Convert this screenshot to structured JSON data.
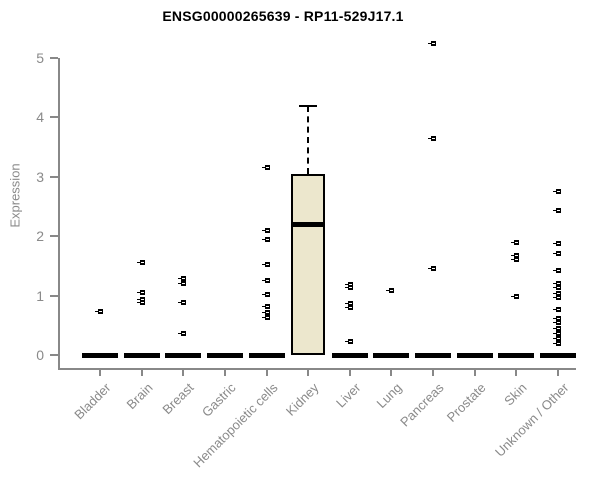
{
  "chart_data": {
    "type": "boxplot",
    "title": "ENSG00000265639 - RP11-529J17.1",
    "ylabel": "Expression",
    "xlabel": "",
    "ylim": [
      0,
      5
    ],
    "yticks": [
      0,
      1,
      2,
      3,
      4,
      5
    ],
    "grid": "off",
    "legend": "none",
    "categories": [
      "Bladder",
      "Brain",
      "Breast",
      "Gastric",
      "Hematopoietic cells",
      "Kidney",
      "Liver",
      "Lung",
      "Pancreas",
      "Prostate",
      "Skin",
      "Unknown / Other"
    ],
    "groups": [
      {
        "name": "Bladder",
        "q1": 0,
        "median": 0,
        "q3": 0,
        "whisker_low": 0,
        "whisker_high": 0,
        "points": [
          0.74
        ]
      },
      {
        "name": "Brain",
        "q1": 0,
        "median": 0,
        "q3": 0,
        "whisker_low": 0,
        "whisker_high": 0,
        "points": [
          1.55,
          1.06,
          0.94,
          0.88
        ]
      },
      {
        "name": "Breast",
        "q1": 0,
        "median": 0,
        "q3": 0,
        "whisker_low": 0,
        "whisker_high": 0,
        "points": [
          1.28,
          1.21,
          0.89,
          0.37
        ]
      },
      {
        "name": "Gastric",
        "q1": 0,
        "median": 0,
        "q3": 0,
        "whisker_low": 0,
        "whisker_high": 0,
        "points": []
      },
      {
        "name": "Hematopoietic cells",
        "q1": 0,
        "median": 0,
        "q3": 0,
        "whisker_low": 0,
        "whisker_high": 0,
        "points": [
          3.15,
          2.1,
          1.95,
          1.53,
          1.26,
          1.02,
          0.82,
          0.72,
          0.63
        ]
      },
      {
        "name": "Kidney",
        "q1": 0,
        "median": 2.2,
        "q3": 3.05,
        "whisker_low": 0,
        "whisker_high": 4.2,
        "points": []
      },
      {
        "name": "Liver",
        "q1": 0,
        "median": 0,
        "q3": 0,
        "whisker_low": 0,
        "whisker_high": 0,
        "points": [
          1.19,
          1.13,
          0.86,
          0.8,
          0.22
        ]
      },
      {
        "name": "Lung",
        "q1": 0,
        "median": 0,
        "q3": 0,
        "whisker_low": 0,
        "whisker_high": 0,
        "points": [
          1.09
        ]
      },
      {
        "name": "Pancreas",
        "q1": 0,
        "median": 0,
        "q3": 0,
        "whisker_low": 0,
        "whisker_high": 0,
        "points": [
          5.24,
          3.64,
          1.46
        ]
      },
      {
        "name": "Prostate",
        "q1": 0,
        "median": 0,
        "q3": 0,
        "whisker_low": 0,
        "whisker_high": 0,
        "points": []
      },
      {
        "name": "Skin",
        "q1": 0,
        "median": 0,
        "q3": 0,
        "whisker_low": 0,
        "whisker_high": 0,
        "points": [
          1.89,
          1.68,
          1.61,
          0.98
        ]
      },
      {
        "name": "Unknown / Other",
        "q1": 0,
        "median": 0,
        "q3": 0,
        "whisker_low": 0,
        "whisker_high": 0,
        "points": [
          2.75,
          2.43,
          1.87,
          1.71,
          1.43,
          1.21,
          1.13,
          1.04,
          0.96,
          0.77,
          0.62,
          0.54,
          0.45,
          0.37,
          0.27,
          0.2
        ]
      }
    ],
    "colors": {
      "box_fill": "#ece7cd",
      "box_border": "#000000",
      "point": "#000000",
      "axis": "#888888",
      "tick_label": "#8a8a8a",
      "title": "#000000"
    }
  }
}
